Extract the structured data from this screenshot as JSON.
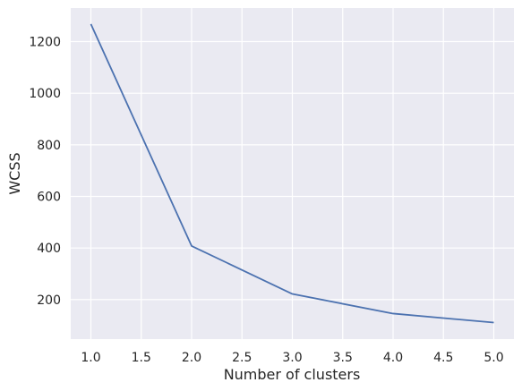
{
  "chart_data": {
    "type": "line",
    "title": "",
    "xlabel": "Number of clusters",
    "ylabel": "WCSS",
    "x": [
      1,
      2,
      3,
      4,
      5
    ],
    "series": [
      {
        "values": [
          1268,
          408,
          222,
          146,
          111
        ]
      }
    ],
    "xlim": [
      0.8,
      5.2
    ],
    "ylim": [
      47,
      1330
    ],
    "xticks": [
      1.0,
      1.5,
      2.0,
      2.5,
      3.0,
      3.5,
      4.0,
      4.5,
      5.0
    ],
    "xtick_labels": [
      "1.0",
      "1.5",
      "2.0",
      "2.5",
      "3.0",
      "3.5",
      "4.0",
      "4.5",
      "5.0"
    ],
    "yticks": [
      200,
      400,
      600,
      800,
      1000,
      1200
    ],
    "ytick_labels": [
      "200",
      "400",
      "600",
      "800",
      "1000",
      "1200"
    ],
    "grid": true,
    "legend": "none",
    "colors": {
      "plot_background": "#eaeaf2",
      "grid": "#ffffff",
      "line": "#4c72b0",
      "text": "#262626"
    }
  }
}
